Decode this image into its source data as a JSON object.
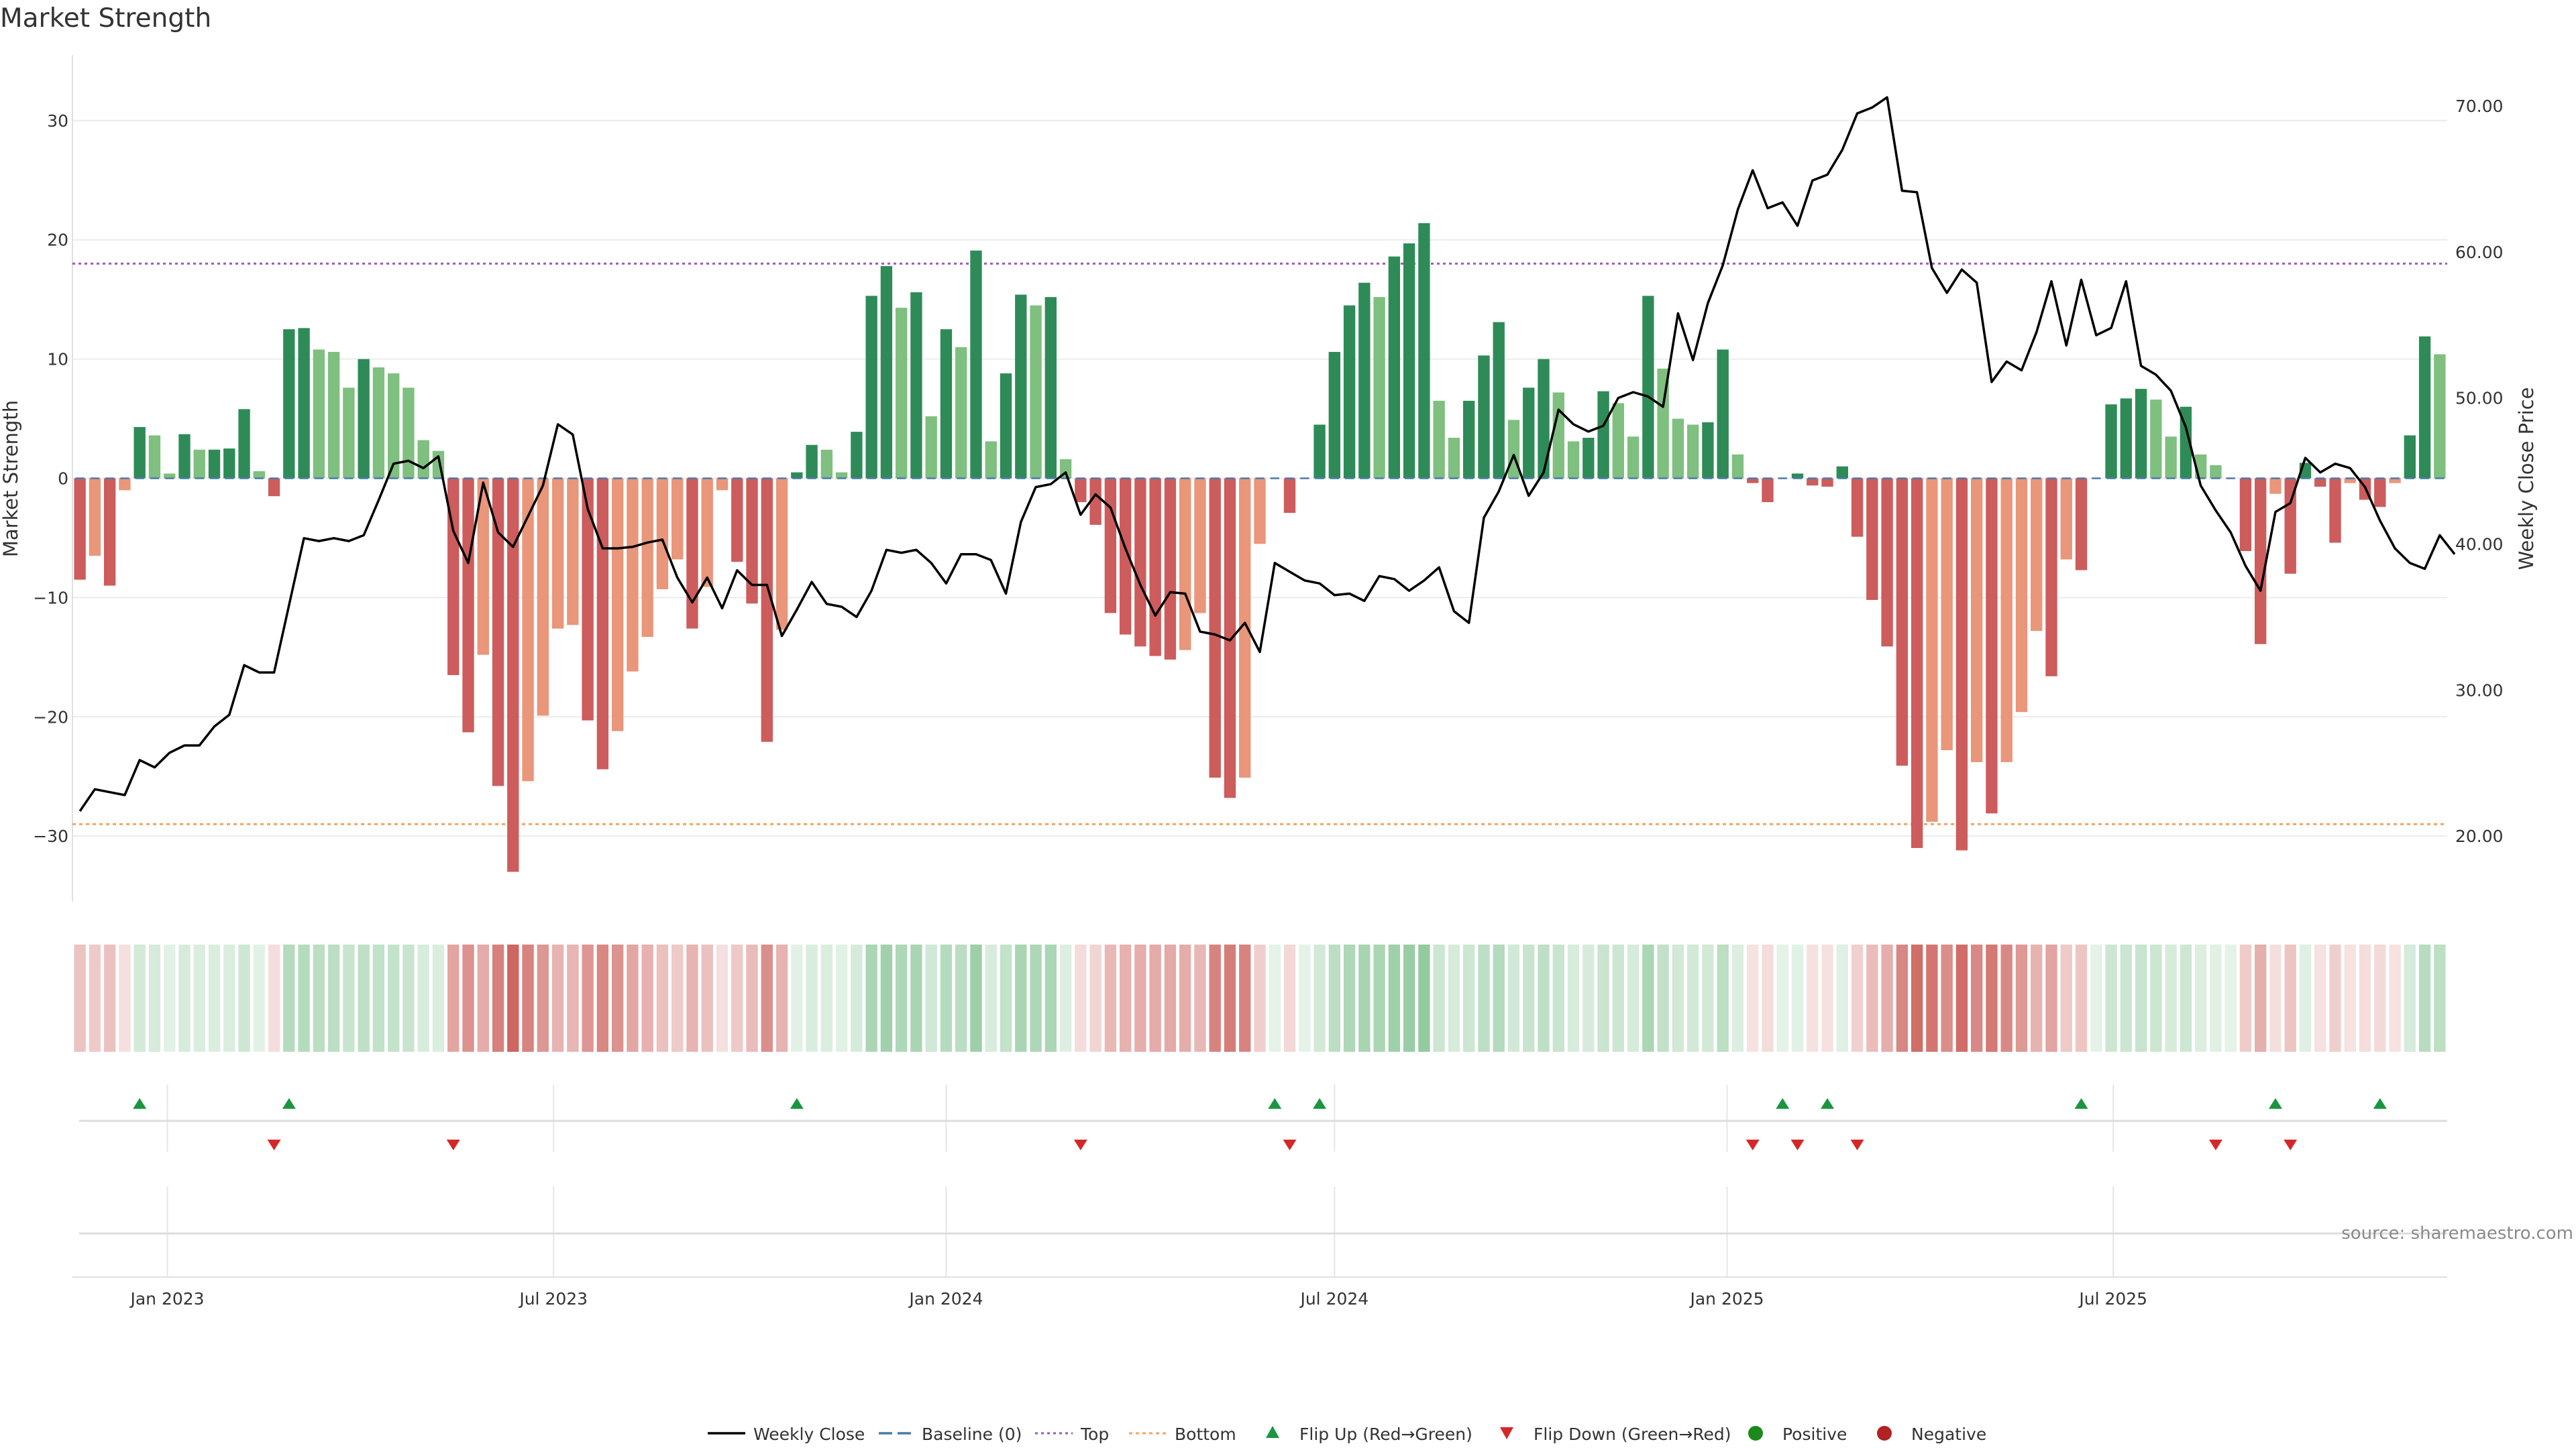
{
  "chart_data": {
    "type": "bar",
    "title": "Market Strength",
    "y_label_left": "Market Strength",
    "y_label_right": "Weekly Close Price",
    "source": "source: sharemaestro.com",
    "start_date": "2022-11-21",
    "x_ticks": [
      {
        "date": "2023-01-01",
        "label": "Jan 2023"
      },
      {
        "date": "2023-07-01",
        "label": "Jul 2023"
      },
      {
        "date": "2024-01-01",
        "label": "Jan 2024"
      },
      {
        "date": "2024-07-01",
        "label": "Jul 2024"
      },
      {
        "date": "2025-01-01",
        "label": "Jan 2025"
      },
      {
        "date": "2025-07-01",
        "label": "Jul 2025"
      }
    ],
    "y_left": {
      "min": -35.5,
      "max": 35.5,
      "ticks": [
        30,
        20,
        10,
        0,
        -10,
        -20,
        -30
      ],
      "tick_labels": [
        "30",
        "20",
        "10",
        "0",
        "−10",
        "−20",
        "−30"
      ]
    },
    "y_right": {
      "min": 15.5,
      "max": 73.5,
      "ticks": [
        70,
        60,
        50,
        40,
        30,
        20
      ],
      "tick_labels": [
        "70.00",
        "60.00",
        "50.00",
        "40.00",
        "30.00",
        "20.00"
      ]
    },
    "top_line": 18,
    "bottom_line": -29,
    "colors": {
      "strong_green": "#2e8b57",
      "light_green": "#7fbf7f",
      "strong_red": "#cd5c5c",
      "light_red": "#e9967a",
      "price_line": "#000000",
      "top_line": "#9b59b6",
      "bottom_line": "#f4a460",
      "baseline": "#4a7aa8",
      "flip_up": "#1a9641",
      "flip_down": "#d62728",
      "positive": "#1a8a1a",
      "negative": "#b22222"
    },
    "strength": [
      -8.5,
      -6.5,
      -9,
      -1,
      4.3,
      3.6,
      0.4,
      3.7,
      2.4,
      2.4,
      2.5,
      5.8,
      0.6,
      -1.5,
      12.5,
      12.6,
      10.8,
      10.6,
      7.6,
      10,
      9.3,
      8.8,
      7.6,
      3.2,
      2.3,
      -16.5,
      -21.3,
      -14.8,
      -25.8,
      -33,
      -25.4,
      -19.9,
      -12.6,
      -12.3,
      -20.3,
      -24.4,
      -21.2,
      -16.2,
      -13.3,
      -9.3,
      -6.8,
      -12.6,
      -9.1,
      -1,
      -7,
      -10.5,
      -22.1,
      -12.7,
      0.5,
      2.8,
      2.4,
      0.5,
      3.9,
      15.3,
      17.8,
      14.3,
      15.6,
      5.2,
      12.5,
      11,
      19.1,
      3.1,
      8.8,
      15.4,
      14.5,
      15.2,
      1.6,
      -2,
      -3.9,
      -11.3,
      -13.1,
      -14.1,
      -14.9,
      -15.2,
      -14.4,
      -11.3,
      -25.1,
      -26.8,
      -25.1,
      -5.5,
      0,
      -2.9,
      0,
      4.5,
      10.6,
      14.5,
      16.4,
      15.2,
      18.6,
      19.7,
      21.4,
      6.5,
      3.4,
      6.5,
      10.3,
      13.1,
      4.9,
      7.6,
      10,
      7.2,
      3.1,
      3.4,
      7.3,
      6.3,
      3.5,
      15.3,
      9.2,
      5,
      4.5,
      4.7,
      10.8,
      2,
      -0.4,
      -2,
      0,
      0.4,
      -0.6,
      -0.7,
      1,
      -4.9,
      -10.2,
      -14.1,
      -24.1,
      -31,
      -28.8,
      -22.8,
      -31.2,
      -23.8,
      -28.1,
      -23.8,
      -19.6,
      -12.8,
      -16.6,
      -6.8,
      -7.7,
      0,
      6.2,
      6.7,
      7.5,
      6.6,
      3.5,
      6,
      2,
      1.1,
      0,
      -6.1,
      -13.9,
      -1.3,
      -8,
      1.3,
      -0.7,
      -5.4,
      -0.4,
      -1.8,
      -2.4,
      -0.4,
      3.6,
      11.9,
      10.4
    ],
    "price": [
      21.7,
      23.2,
      23,
      22.8,
      25.2,
      24.7,
      25.7,
      26.2,
      26.2,
      27.5,
      28.3,
      31.7,
      31.2,
      31.2,
      35.8,
      40.4,
      40.2,
      40.4,
      40.2,
      40.6,
      43,
      45.5,
      45.7,
      45.2,
      46,
      40.9,
      38.7,
      44.2,
      40.8,
      39.8,
      41.9,
      44,
      48.2,
      47.5,
      42.4,
      39.7,
      39.7,
      39.8,
      40.1,
      40.3,
      37.7,
      36,
      37.7,
      35.6,
      38.2,
      37.2,
      37.2,
      33.7,
      35.5,
      37.4,
      35.9,
      35.7,
      35,
      36.8,
      39.6,
      39.4,
      39.6,
      38.7,
      37.3,
      39.3,
      39.3,
      38.9,
      36.6,
      41.5,
      43.9,
      44.1,
      44.9,
      42,
      43.4,
      42.5,
      39.7,
      37.2,
      35.1,
      36.7,
      36.6,
      34,
      33.8,
      33.4,
      34.6,
      32.6,
      38.7,
      38.1,
      37.5,
      37.3,
      36.5,
      36.6,
      36.1,
      37.8,
      37.6,
      36.8,
      37.5,
      38.4,
      35.4,
      34.6,
      41.8,
      43.6,
      46.1,
      43.3,
      44.9,
      49.2,
      48.2,
      47.7,
      48.1,
      50,
      50.4,
      50.1,
      49.4,
      55.8,
      52.6,
      56.5,
      59.1,
      62.9,
      65.6,
      63,
      63.4,
      61.8,
      64.9,
      65.3,
      67,
      69.5,
      69.9,
      70.6,
      64.2,
      64.1,
      58.9,
      57.2,
      58.8,
      57.9,
      51.1,
      52.5,
      51.9,
      54.5,
      58,
      53.6,
      58.1,
      54.3,
      54.8,
      58,
      52.2,
      51.6,
      50.5,
      48,
      44,
      42.3,
      40.8,
      38.5,
      36.8,
      42.2,
      42.8,
      45.9,
      44.9,
      45.5,
      45.2,
      43.9,
      41.6,
      39.7,
      38.7,
      38.3,
      40.6,
      39.3
    ],
    "flip_up_idx": [
      4,
      14,
      48,
      80,
      83,
      114,
      117,
      134,
      147,
      154
    ],
    "flip_down_idx": [
      13,
      25,
      67,
      81,
      112,
      115,
      119,
      143,
      148
    ],
    "legend": [
      {
        "key": "line",
        "label": "Weekly Close"
      },
      {
        "key": "baseline",
        "label": "Baseline (0)"
      },
      {
        "key": "top",
        "label": "Top"
      },
      {
        "key": "bottom",
        "label": "Bottom"
      },
      {
        "key": "flip_up",
        "label": "Flip Up (Red→Green)"
      },
      {
        "key": "flip_down",
        "label": "Flip Down (Green→Red)"
      },
      {
        "key": "positive",
        "label": "Positive"
      },
      {
        "key": "negative",
        "label": "Negative"
      }
    ]
  }
}
